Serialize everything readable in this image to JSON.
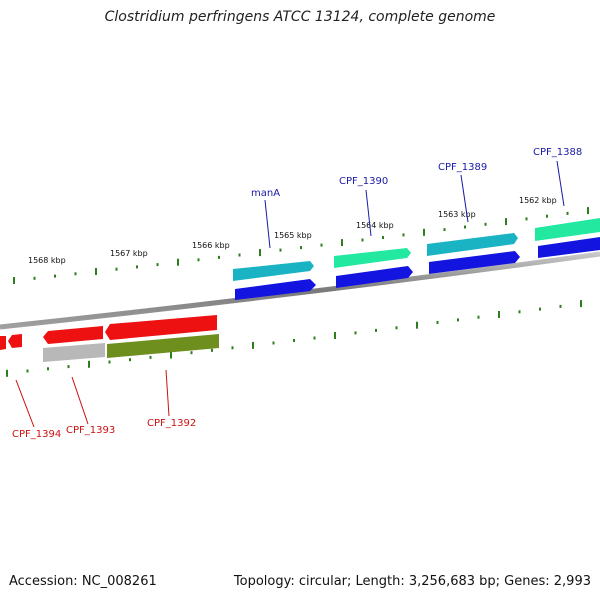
{
  "title": "Clostridium perfringens ATCC 13124, complete genome",
  "accession": "Accession: NC_008261",
  "summary": "Topology: circular; Length: 3,256,683 bp; Genes: 2,993",
  "colors": {
    "backbone": "#8a8a8a",
    "tick": "#2e7d1e",
    "label_forward": "#1a1aa6",
    "label_reverse": "#cc1111",
    "teal": "#19b3c4",
    "mint": "#22e8a0",
    "blue": "#1414e0",
    "red": "#ee1111",
    "grey": "#b8b8b8",
    "olive": "#6e8f1e"
  },
  "scale_labels": [
    "1568 kbp",
    "1567 kbp",
    "1566 kbp",
    "1565 kbp",
    "1564 kbp",
    "1563 kbp",
    "1562 kbp"
  ],
  "forward_genes": [
    {
      "label": "manA",
      "color": "teal"
    },
    {
      "label": "CPF_1390",
      "color": "mint"
    },
    {
      "label": "CPF_1389",
      "color": "teal"
    },
    {
      "label": "CPF_1388",
      "color": "mint"
    }
  ],
  "reverse_genes": [
    {
      "label": "CPF_1394",
      "color": "red"
    },
    {
      "label": "CPF_1393",
      "color": "grey"
    },
    {
      "label": "CPF_1392",
      "color": "olive"
    }
  ]
}
